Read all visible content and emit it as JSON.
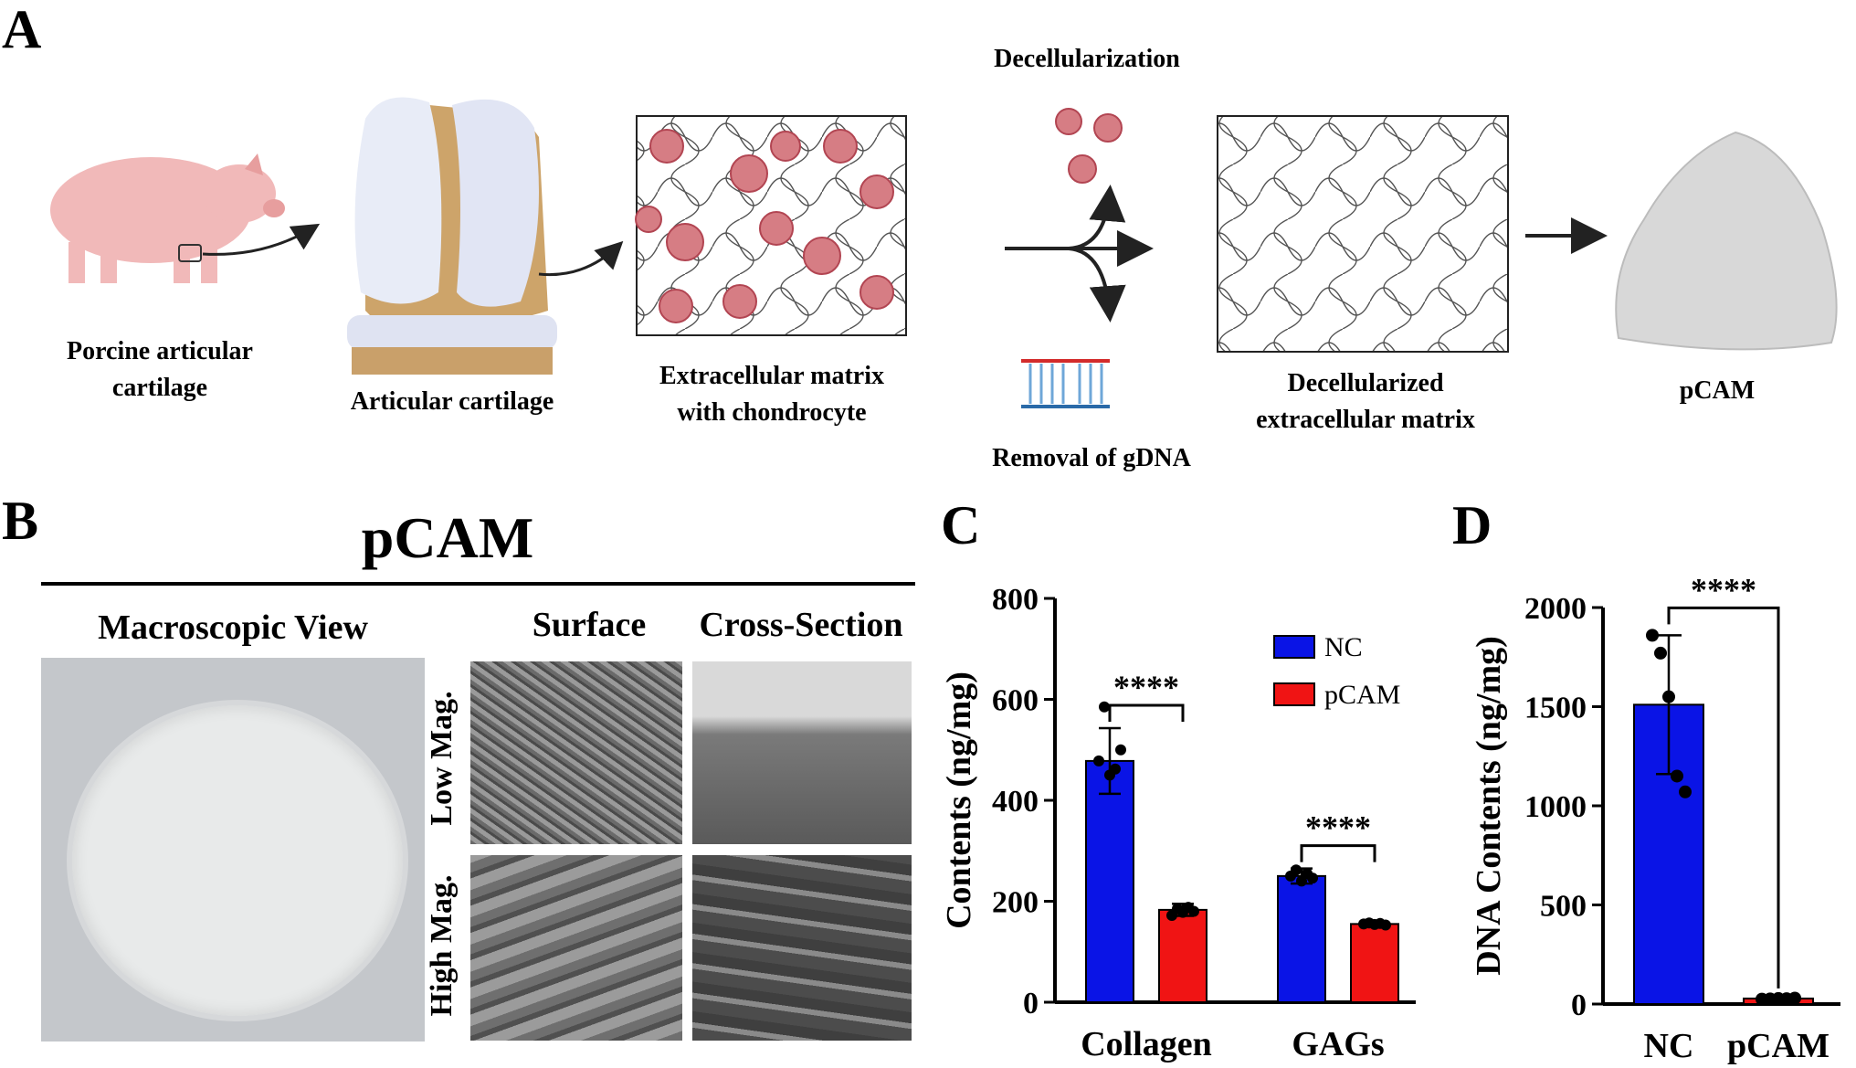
{
  "panels": {
    "a": "A",
    "b": "B",
    "c": "C",
    "d": "D"
  },
  "schematic": {
    "steps": [
      {
        "id": "pig",
        "label_l1": "Porcine articular",
        "label_l2": "cartilage"
      },
      {
        "id": "articular",
        "label_l1": "Articular cartilage",
        "label_l2": ""
      },
      {
        "id": "ecm",
        "label_l1": "Extracellular matrix",
        "label_l2": "with chondrocyte"
      },
      {
        "id": "decell_ecm",
        "label_l1": "Decellularized",
        "label_l2": "extracellular matrix"
      },
      {
        "id": "pcam",
        "label_l1": "pCAM",
        "label_l2": ""
      }
    ],
    "decellularization": "Decellularization",
    "removal": "Removal of gDNA"
  },
  "panel_b": {
    "title": "pCAM",
    "macroscopic": "Macroscopic View",
    "surface": "Surface",
    "cross_section": "Cross-Section",
    "low_mag": "Low Mag.",
    "high_mag": "High Mag."
  },
  "chart_data": [
    {
      "type": "bar",
      "panel": "C",
      "title": "",
      "xlabel": "",
      "ylabel": "Contents (ng/mg)",
      "ylim": [
        0,
        800
      ],
      "yticks": [
        "0",
        "200",
        "400",
        "600",
        "800"
      ],
      "categories": [
        "Collagen",
        "GAGs"
      ],
      "series": [
        {
          "name": "NC",
          "color": "#0a14e6",
          "values": [
            478,
            250
          ],
          "errors": [
            65,
            15
          ],
          "points": [
            [
              478,
              585,
              450,
              462,
              500
            ],
            [
              250,
              262,
              240,
              255,
              246
            ]
          ]
        },
        {
          "name": "pCAM",
          "color": "#f01414",
          "values": [
            183,
            155
          ],
          "errors": [
            12,
            4
          ],
          "points": [
            [
              172,
              185,
              178,
              188,
              180
            ],
            [
              155,
              157,
              154,
              156,
              153
            ]
          ]
        }
      ],
      "significance": [
        "****",
        "****"
      ],
      "legend": "top-right"
    },
    {
      "type": "bar",
      "panel": "D",
      "title": "",
      "xlabel": "",
      "ylabel": "DNA Contents (ng/mg)",
      "ylim": [
        0,
        2000
      ],
      "yticks": [
        "0",
        "500",
        "1000",
        "1500",
        "2000"
      ],
      "categories": [
        "NC",
        "pCAM"
      ],
      "series": [
        {
          "name": "",
          "colors": [
            "#0a14e6",
            "#f01414"
          ],
          "values": [
            1510,
            28
          ],
          "errors": [
            350,
            5
          ],
          "points": [
            [
              1860,
              1770,
              1550,
              1150,
              1070
            ],
            [
              25,
              26,
              28,
              27,
              30
            ]
          ]
        }
      ],
      "significance": [
        "****"
      ]
    }
  ]
}
